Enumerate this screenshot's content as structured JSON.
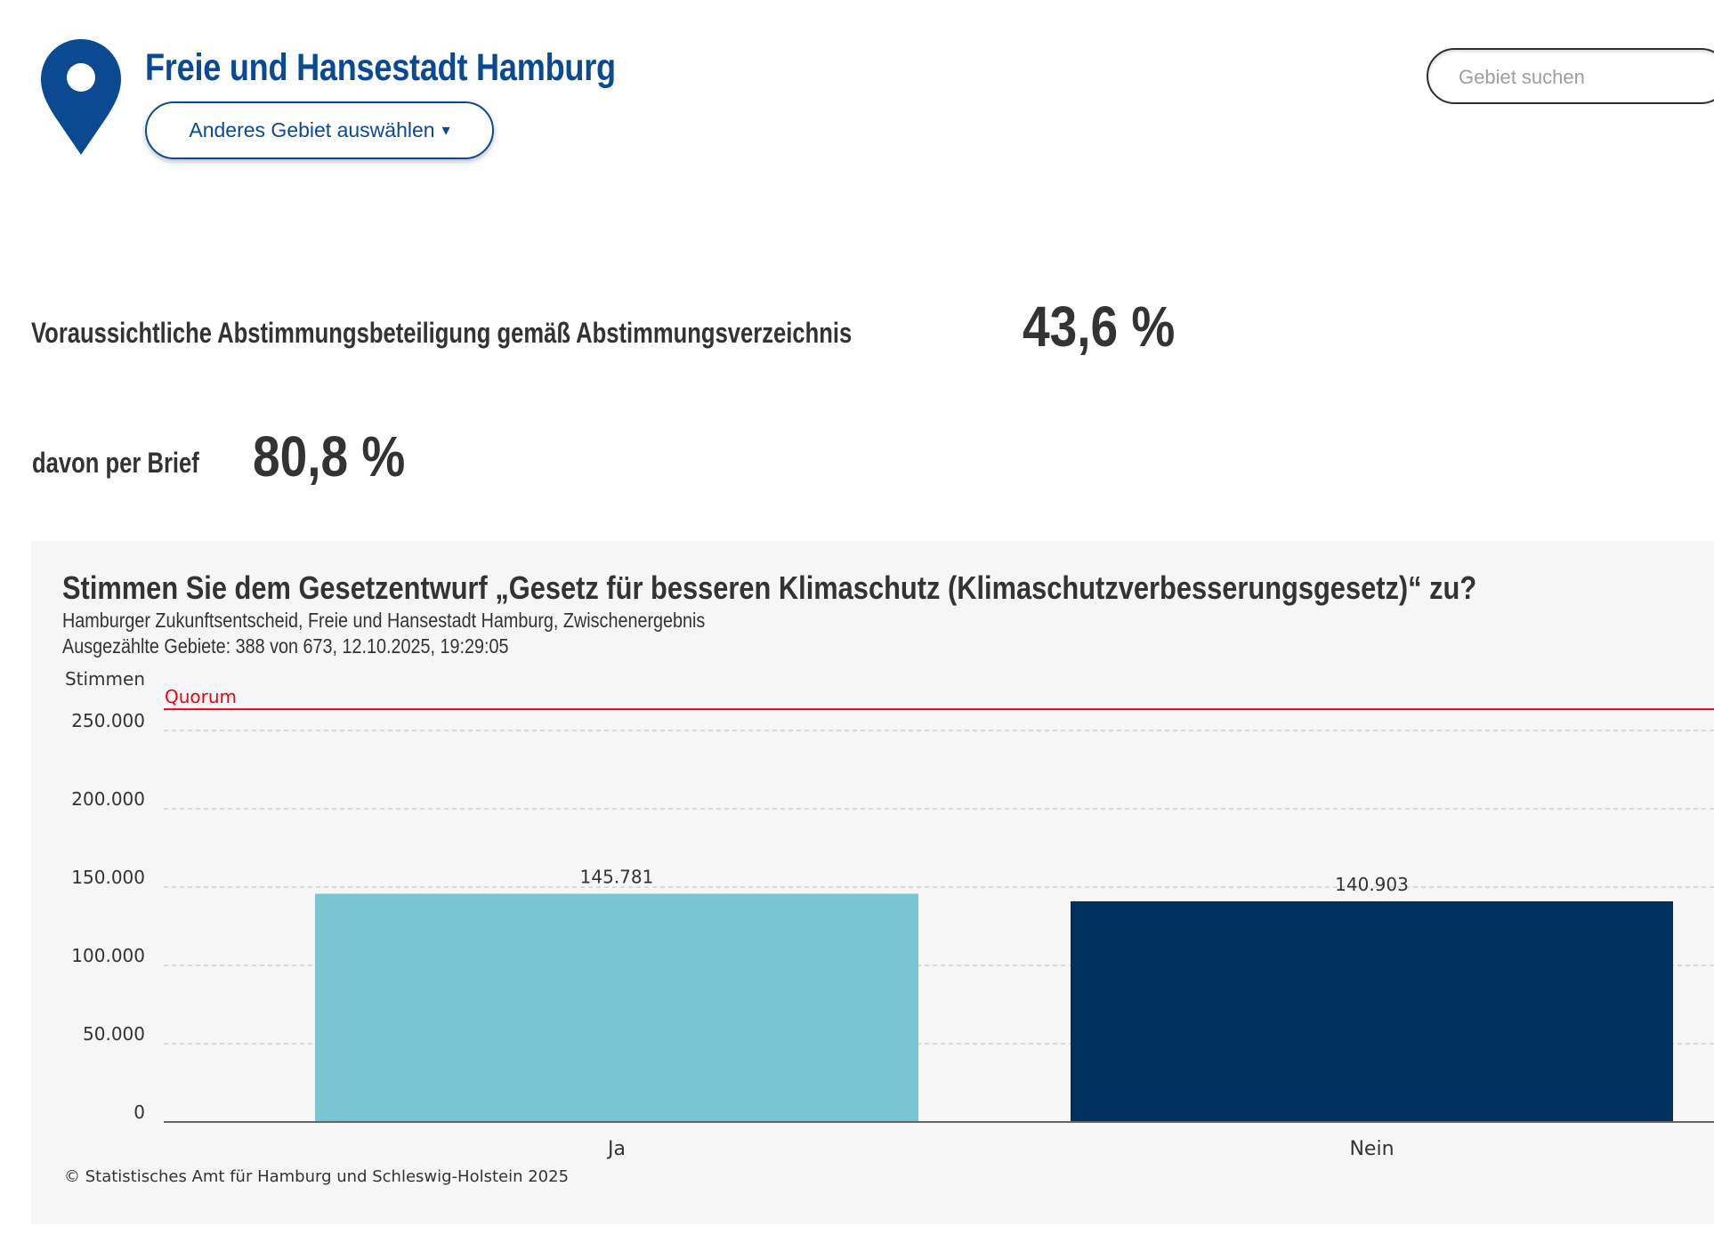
{
  "header": {
    "region_title": "Freie und Hansestadt Hamburg",
    "region_button_label": "Anderes Gebiet auswählen",
    "region_button_caret": "▾",
    "pin_icon": "map-pin-icon",
    "search_placeholder": "Gebiet suchen",
    "search_value": ""
  },
  "turnout": {
    "label": "Voraussichtliche Abstimmungsbeteiligung gemäß Abstimmungsverzeichnis",
    "value": "43,6 %",
    "brief_label": "davon per Brief",
    "brief_value": "80,8 %"
  },
  "colors": {
    "brand": "#0b4a92",
    "ja": "#79c5d1",
    "nein": "#00305e",
    "quorum": "#e30613",
    "panel_bg": "#f6f6f6"
  },
  "chart_data": {
    "type": "bar",
    "title": "Stimmen Sie dem Gesetzentwurf „Gesetz für besseren Klimaschutz (Klimaschutzverbesserungsgesetz)“ zu?",
    "subtitle": "Hamburger Zukunftsentscheid, Freie und Hansestadt Hamburg, Zwischenergebnis",
    "meta": "Ausgezählte Gebiete: 388 von 673, 12.10.2025, 19:29:05",
    "ylabel": "Stimmen",
    "xlabel": "",
    "categories": [
      "Ja",
      "Nein"
    ],
    "values": [
      145781,
      140903
    ],
    "value_labels": [
      "145.781",
      "140.903"
    ],
    "ylim": [
      0,
      263600
    ],
    "yticks": [
      0,
      50000,
      100000,
      150000,
      200000,
      250000
    ],
    "ytick_labels": [
      "0",
      "50.000",
      "100.000",
      "150.000",
      "200.000",
      "250.000"
    ],
    "grid": true,
    "reference_line": {
      "label": "Quorum",
      "value_approx": 263600
    },
    "source": "© Statistisches Amt für Hamburg und Schleswig-Holstein 2025"
  }
}
